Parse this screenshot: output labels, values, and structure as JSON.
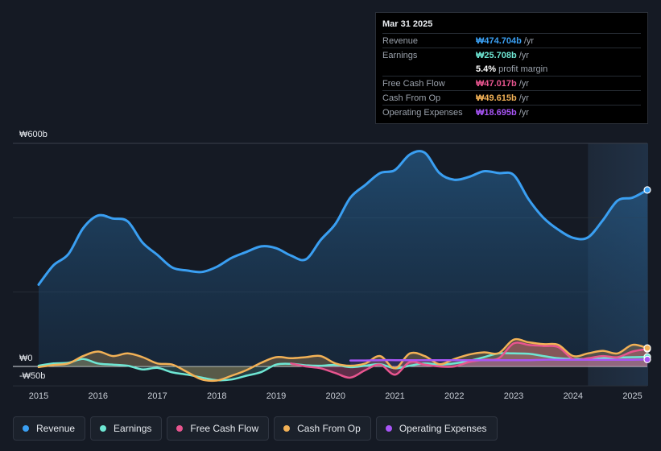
{
  "tooltip": {
    "date": "Mar 31 2025",
    "rows": [
      {
        "label": "Revenue",
        "value": "₩474.704b",
        "unit": "/yr",
        "color": "#3a9ff2"
      },
      {
        "label": "Earnings",
        "value": "₩25.708b",
        "unit": "/yr",
        "color": "#6ee6d3"
      },
      {
        "label": "",
        "value": "5.4%",
        "unit": "profit margin",
        "color": "#ffffff"
      },
      {
        "label": "Free Cash Flow",
        "value": "₩47.017b",
        "unit": "/yr",
        "color": "#e8558f"
      },
      {
        "label": "Cash From Op",
        "value": "₩49.615b",
        "unit": "/yr",
        "color": "#f2b156"
      },
      {
        "label": "Operating Expenses",
        "value": "₩18.695b",
        "unit": "/yr",
        "color": "#a855f7"
      }
    ]
  },
  "legend": [
    {
      "label": "Revenue",
      "color": "#3a9ff2"
    },
    {
      "label": "Earnings",
      "color": "#6ee6d3"
    },
    {
      "label": "Free Cash Flow",
      "color": "#e8558f"
    },
    {
      "label": "Cash From Op",
      "color": "#f2b156"
    },
    {
      "label": "Operating Expenses",
      "color": "#a855f7"
    }
  ],
  "chart_data": {
    "type": "line",
    "title": "",
    "currency": "KRW",
    "y_top_label": "₩600b",
    "y_zero_label": "₩0",
    "y_bottom_label": "-₩50b",
    "ylim": [
      -50,
      600
    ],
    "xlim": [
      2015.0,
      2025.25
    ],
    "x_ticks": [
      "2015",
      "2016",
      "2017",
      "2018",
      "2019",
      "2020",
      "2021",
      "2022",
      "2023",
      "2024",
      "2025"
    ],
    "forecast_start": 2024.25,
    "series": [
      {
        "name": "Revenue",
        "color": "#3a9ff2",
        "x": [
          2015.0,
          2015.25,
          2015.5,
          2015.75,
          2016.0,
          2016.25,
          2016.5,
          2016.75,
          2017.0,
          2017.25,
          2017.5,
          2017.75,
          2018.0,
          2018.25,
          2018.5,
          2018.75,
          2019.0,
          2019.25,
          2019.5,
          2019.75,
          2020.0,
          2020.25,
          2020.5,
          2020.75,
          2021.0,
          2021.25,
          2021.5,
          2021.75,
          2022.0,
          2022.25,
          2022.5,
          2022.75,
          2023.0,
          2023.25,
          2023.5,
          2023.75,
          2024.0,
          2024.25,
          2024.5,
          2024.75,
          2025.0,
          2025.25
        ],
        "values": [
          220,
          272,
          302,
          372,
          406,
          398,
          390,
          333,
          300,
          266,
          258,
          254,
          268,
          292,
          308,
          323,
          318,
          298,
          288,
          340,
          384,
          454,
          488,
          520,
          528,
          570,
          575,
          520,
          502,
          510,
          525,
          520,
          515,
          450,
          400,
          368,
          346,
          347,
          393,
          446,
          454,
          474.7
        ]
      },
      {
        "name": "Earnings",
        "color": "#6ee6d3",
        "x": [
          2015.0,
          2015.25,
          2015.5,
          2015.75,
          2016.0,
          2016.25,
          2016.5,
          2016.75,
          2017.0,
          2017.25,
          2017.5,
          2017.75,
          2018.0,
          2018.25,
          2018.5,
          2018.75,
          2019.0,
          2019.25,
          2019.5,
          2019.75,
          2020.0,
          2020.25,
          2020.5,
          2020.75,
          2021.0,
          2021.25,
          2021.5,
          2021.75,
          2022.0,
          2022.25,
          2022.5,
          2022.75,
          2023.0,
          2023.25,
          2023.5,
          2023.75,
          2024.0,
          2024.25,
          2024.5,
          2024.75,
          2025.0,
          2025.25
        ],
        "values": [
          2,
          8,
          10,
          20,
          8,
          5,
          2,
          -8,
          -4,
          -16,
          -22,
          -30,
          -37,
          -35,
          -25,
          -15,
          5,
          7,
          3,
          2,
          4,
          -2,
          2,
          6,
          -5,
          2,
          8,
          5,
          8,
          15,
          25,
          35,
          35,
          34,
          28,
          22,
          20,
          20,
          22,
          24,
          25,
          25.7
        ]
      },
      {
        "name": "Free Cash Flow",
        "color": "#e8558f",
        "x": [
          2019.25,
          2019.5,
          2019.75,
          2020.0,
          2020.25,
          2020.5,
          2020.75,
          2021.0,
          2021.25,
          2021.5,
          2021.75,
          2022.0,
          2022.25,
          2022.5,
          2022.75,
          2023.0,
          2023.25,
          2023.5,
          2023.75,
          2024.0,
          2024.25,
          2024.5,
          2024.75,
          2025.0,
          2025.25
        ],
        "values": [
          8,
          0,
          -5,
          -18,
          -30,
          -10,
          5,
          -22,
          12,
          5,
          0,
          0,
          12,
          18,
          22,
          62,
          58,
          55,
          52,
          20,
          22,
          28,
          25,
          40,
          47.0
        ]
      },
      {
        "name": "Cash From Op",
        "color": "#f2b156",
        "x": [
          2015.0,
          2015.25,
          2015.5,
          2015.75,
          2016.0,
          2016.25,
          2016.5,
          2016.75,
          2017.0,
          2017.25,
          2017.5,
          2017.75,
          2018.0,
          2018.25,
          2018.5,
          2018.75,
          2019.0,
          2019.25,
          2019.5,
          2019.75,
          2020.0,
          2020.25,
          2020.5,
          2020.75,
          2021.0,
          2021.25,
          2021.5,
          2021.75,
          2022.0,
          2022.25,
          2022.5,
          2022.75,
          2023.0,
          2023.25,
          2023.5,
          2023.75,
          2024.0,
          2024.25,
          2024.5,
          2024.75,
          2025.0,
          2025.25
        ],
        "values": [
          -2,
          4,
          8,
          28,
          40,
          28,
          35,
          25,
          8,
          5,
          -15,
          -35,
          -38,
          -25,
          -10,
          10,
          25,
          22,
          25,
          28,
          8,
          2,
          8,
          28,
          -5,
          35,
          28,
          6,
          20,
          32,
          38,
          36,
          72,
          65,
          60,
          58,
          28,
          35,
          42,
          35,
          58,
          49.6
        ]
      },
      {
        "name": "Operating Expenses",
        "color": "#a855f7",
        "x": [
          2020.25,
          2020.5,
          2020.75,
          2021.0,
          2021.25,
          2021.5,
          2021.75,
          2022.0,
          2022.25,
          2022.5,
          2022.75,
          2023.0,
          2023.25,
          2023.5,
          2023.75,
          2024.0,
          2024.25,
          2024.5,
          2024.75,
          2025.0,
          2025.25
        ],
        "values": [
          16,
          16,
          17,
          17,
          17,
          17,
          17,
          17,
          17,
          17,
          17,
          17,
          17,
          18,
          18,
          18,
          18,
          18,
          18,
          18,
          18.7
        ]
      }
    ]
  }
}
